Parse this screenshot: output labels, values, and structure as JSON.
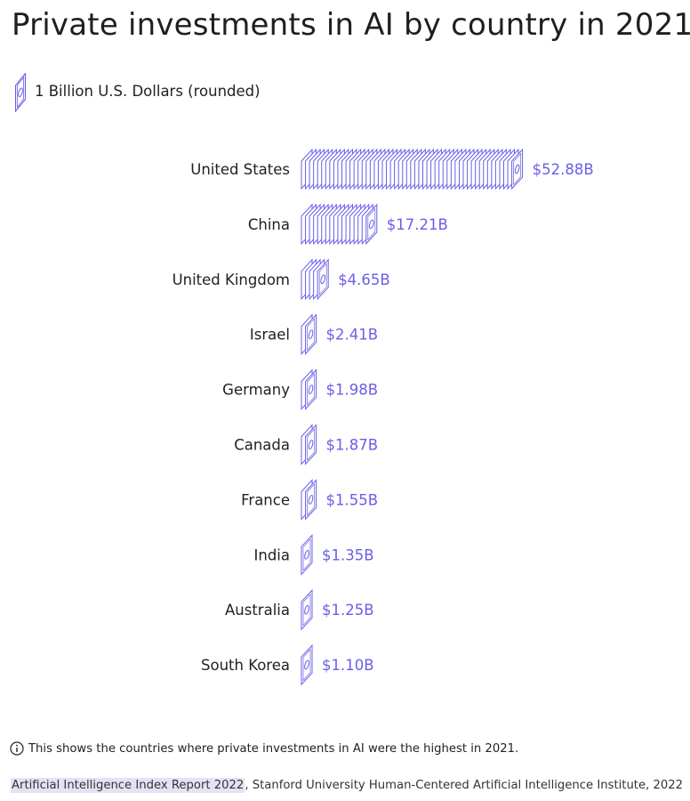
{
  "title": "Private investments in AI by country in 2021",
  "legend": {
    "unit_label": "1 Billion U.S. Dollars (rounded)",
    "icon": "banknote-icon"
  },
  "colors": {
    "accent": "#6a5ee8",
    "text": "#222222",
    "link_bg": "#e4e2f5"
  },
  "chart_data": {
    "type": "bar",
    "orientation": "horizontal",
    "unit": "1 Billion U.S. Dollars (rounded)",
    "categories": [
      "United States",
      "China",
      "United Kingdom",
      "Israel",
      "Germany",
      "Canada",
      "France",
      "India",
      "Australia",
      "South Korea"
    ],
    "values": [
      52.88,
      17.21,
      4.65,
      2.41,
      1.98,
      1.87,
      1.55,
      1.35,
      1.25,
      1.1
    ],
    "labels": [
      "$52.88B",
      "$17.21B",
      "$4.65B",
      "$2.41B",
      "$1.98B",
      "$1.87B",
      "$1.55B",
      "$1.35B",
      "$1.25B",
      "$1.10B"
    ],
    "grid": false
  },
  "footnote": {
    "icon": "info-icon",
    "text": "This shows the countries where private investments in AI were the highest in 2021."
  },
  "source": {
    "link_text": "Artificial Intelligence Index Report 2022",
    "rest": ", Stanford University Human-Centered Artificial Intelligence Institute, 2022"
  }
}
